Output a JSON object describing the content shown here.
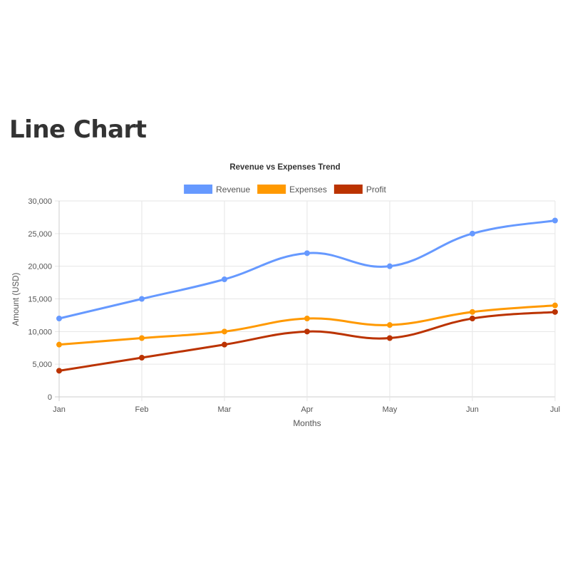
{
  "page": {
    "title": "Line Chart"
  },
  "chart_data": {
    "type": "line",
    "title": "Revenue vs Expenses Trend",
    "xlabel": "Months",
    "ylabel": "Amount (USD)",
    "categories": [
      "Jan",
      "Feb",
      "Mar",
      "Apr",
      "May",
      "Jun",
      "Jul"
    ],
    "ylim": [
      0,
      30000
    ],
    "yticks": [
      0,
      5000,
      10000,
      15000,
      20000,
      25000,
      30000
    ],
    "ytick_labels": [
      "0",
      "5,000",
      "10,000",
      "15,000",
      "20,000",
      "25,000",
      "30,000"
    ],
    "grid": true,
    "legend_position": "top",
    "series": [
      {
        "name": "Revenue",
        "color": "#6699ff",
        "values": [
          12000,
          15000,
          18000,
          22000,
          20000,
          25000,
          27000
        ]
      },
      {
        "name": "Expenses",
        "color": "#ff9900",
        "values": [
          8000,
          9000,
          10000,
          12000,
          11000,
          13000,
          14000
        ]
      },
      {
        "name": "Profit",
        "color": "#bb3300",
        "values": [
          4000,
          6000,
          8000,
          10000,
          9000,
          12000,
          13000
        ]
      }
    ]
  }
}
